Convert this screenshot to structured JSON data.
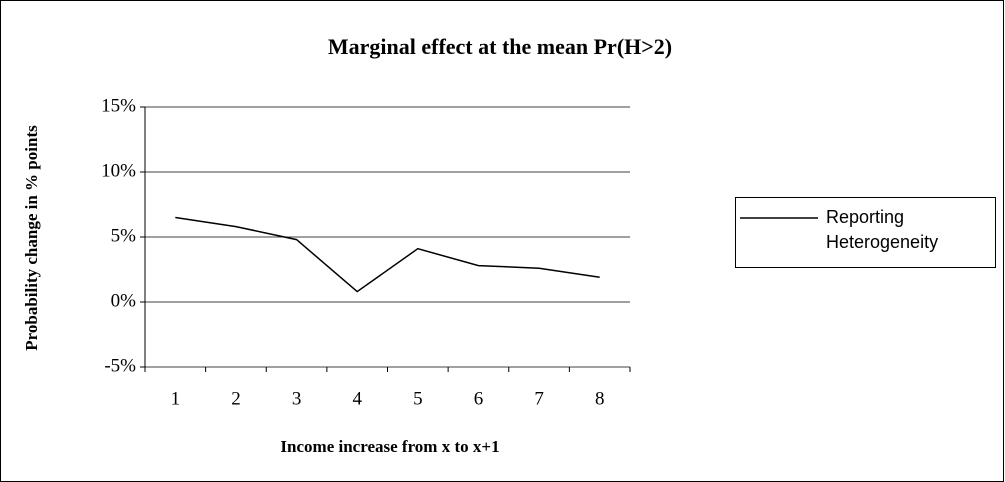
{
  "chart_data": {
    "type": "line",
    "title": "Marginal effect at the mean Pr(H>2)",
    "x_label": "Income increase from x to x+1",
    "y_label": "Probability change in % points",
    "categories": [
      "1",
      "2",
      "3",
      "4",
      "5",
      "6",
      "7",
      "8"
    ],
    "series": [
      {
        "name": "Reporting Heterogeneity",
        "color": "#000000",
        "values": [
          6.5,
          5.8,
          4.8,
          0.8,
          4.1,
          2.8,
          2.6,
          1.9
        ]
      }
    ],
    "ylim": [
      -5,
      15
    ],
    "yticks": [
      {
        "value": -5,
        "label": "-5%"
      },
      {
        "value": 0,
        "label": "0%"
      },
      {
        "value": 5,
        "label": "5%"
      },
      {
        "value": 10,
        "label": "10%"
      },
      {
        "value": 15,
        "label": "15%"
      }
    ],
    "grid": true,
    "legend": "right"
  }
}
